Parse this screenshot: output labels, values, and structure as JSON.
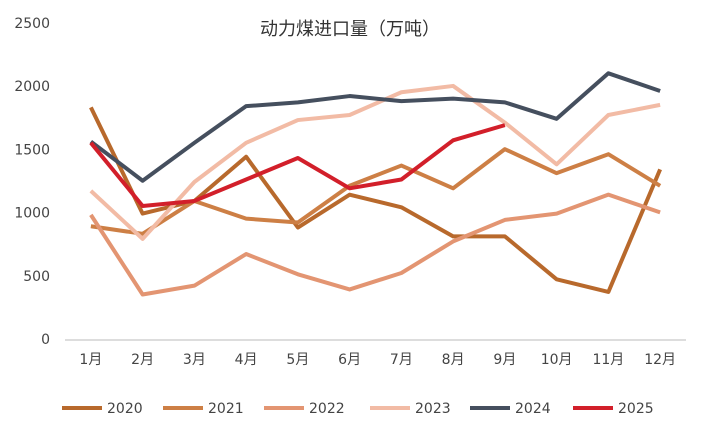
{
  "chart_data": {
    "type": "line",
    "title": "动力煤进口量（万吨）",
    "categories": [
      "1月",
      "2月",
      "3月",
      "4月",
      "5月",
      "6月",
      "7月",
      "8月",
      "9月",
      "10月",
      "11月",
      "12月"
    ],
    "series": [
      {
        "name": "2020",
        "color": "#b8692c",
        "values": [
          1840,
          1000,
          1100,
          1450,
          890,
          1150,
          1050,
          820,
          820,
          480,
          380,
          1350
        ]
      },
      {
        "name": "2021",
        "color": "#cd7f45",
        "values": [
          900,
          840,
          1100,
          960,
          930,
          1220,
          1380,
          1200,
          1510,
          1320,
          1470,
          1220
        ]
      },
      {
        "name": "2022",
        "color": "#e39572",
        "values": [
          990,
          360,
          430,
          680,
          520,
          400,
          530,
          780,
          950,
          1000,
          1150,
          1010
        ]
      },
      {
        "name": "2023",
        "color": "#f2bba5",
        "values": [
          1180,
          800,
          1250,
          1560,
          1740,
          1780,
          1960,
          2010,
          1720,
          1390,
          1780,
          1860
        ]
      },
      {
        "name": "2024",
        "color": "#454f5e",
        "values": [
          1570,
          1260,
          1560,
          1850,
          1880,
          1930,
          1890,
          1910,
          1880,
          1750,
          2110,
          1970
        ]
      },
      {
        "name": "2025",
        "color": "#d21f2a",
        "values": [
          1560,
          1060,
          1100,
          1270,
          1440,
          1200,
          1270,
          1580,
          1700,
          null,
          null,
          null
        ]
      }
    ],
    "ylim": [
      0,
      2500
    ],
    "yticks": [
      0,
      500,
      1000,
      1500,
      2000,
      2500
    ],
    "grid": false,
    "legend": "bottom"
  }
}
